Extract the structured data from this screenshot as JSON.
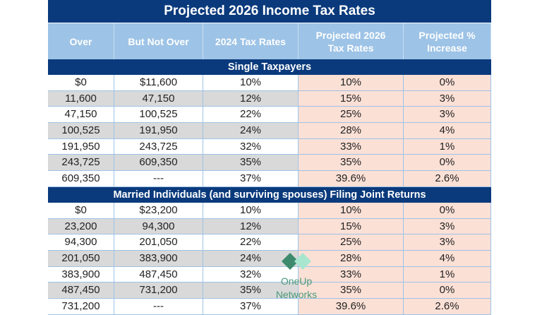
{
  "title": "Projected 2026 Income Tax Rates",
  "headers": [
    "Over",
    "But Not Over",
    "2024 Tax Rates",
    "Projected 2026 Tax Rates",
    "Projected % Increase"
  ],
  "sections": [
    {
      "label": "Single Taxpayers",
      "rows": [
        [
          "$0",
          "$11,600",
          "10%",
          "10%",
          "0%"
        ],
        [
          "11,600",
          "47,150",
          "12%",
          "15%",
          "3%"
        ],
        [
          "47,150",
          "100,525",
          "22%",
          "25%",
          "3%"
        ],
        [
          "100,525",
          "191,950",
          "24%",
          "28%",
          "4%"
        ],
        [
          "191,950",
          "243,725",
          "32%",
          "33%",
          "1%"
        ],
        [
          "243,725",
          "609,350",
          "35%",
          "35%",
          "0%"
        ],
        [
          "609,350",
          "---",
          "37%",
          "39.6%",
          "2.6%"
        ]
      ]
    },
    {
      "label": "Married Individuals (and surviving spouses) Filing Joint Returns",
      "rows": [
        [
          "$0",
          "$23,200",
          "10%",
          "10%",
          "0%"
        ],
        [
          "23,200",
          "94,300",
          "12%",
          "15%",
          "3%"
        ],
        [
          "94,300",
          "201,050",
          "22%",
          "25%",
          "3%"
        ],
        [
          "201,050",
          "383,900",
          "24%",
          "28%",
          "4%"
        ],
        [
          "383,900",
          "487,450",
          "32%",
          "33%",
          "1%"
        ],
        [
          "487,450",
          "731,200",
          "35%",
          "35%",
          "0%"
        ],
        [
          "731,200",
          "---",
          "37%",
          "39.6%",
          "2.6%"
        ]
      ]
    }
  ],
  "watermark": {
    "line1": "OneUp",
    "line2": "Networks"
  },
  "colors": {
    "navy": "#0a3a7c",
    "header": "#9dc3e6",
    "gray_row": "#d9d9d9",
    "projected_bg": "#fbe0d6"
  }
}
